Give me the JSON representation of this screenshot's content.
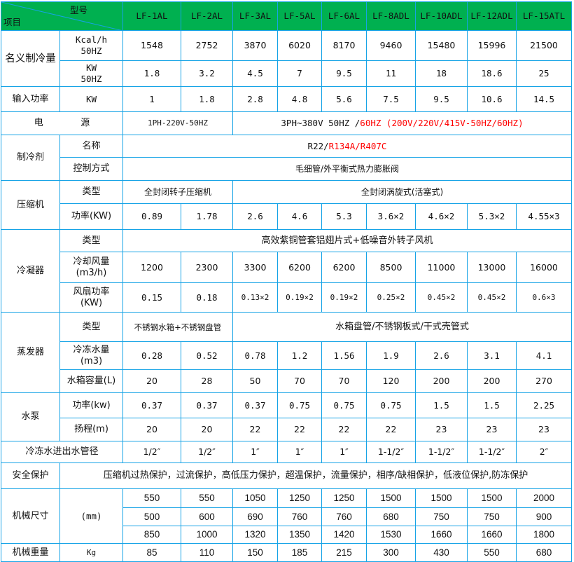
{
  "header": {
    "item_label": "项目",
    "model_label": "型号",
    "models": [
      "LF-1AL",
      "LF-2AL",
      "LF-3AL",
      "LF-5AL",
      "LF-6AL",
      "LF-8ADL",
      "LF-10ADL",
      "LF-12ADL",
      "LF-15ATL"
    ]
  },
  "cooling": {
    "label": "名义制冷量",
    "kcal": {
      "unit1": "Kcal/h",
      "unit2": "50HZ",
      "values": [
        "1548",
        "2752",
        "3870",
        "6020",
        "8170",
        "9460",
        "15480",
        "15996",
        "21500"
      ]
    },
    "kw": {
      "unit1": "KW",
      "unit2": "50HZ",
      "values": [
        "1.8",
        "3.2",
        "4.5",
        "7",
        "9.5",
        "11",
        "18",
        "18.6",
        "25"
      ]
    }
  },
  "input_power": {
    "label": "输入功率",
    "unit": "KW",
    "values": [
      "1",
      "1.8",
      "2.8",
      "4.8",
      "5.6",
      "7.5",
      "9.5",
      "10.6",
      "14.5"
    ]
  },
  "power_supply": {
    "label_a": "电",
    "label_b": "源",
    "single_phase": "1PH-220V-50HZ",
    "three_phase_black": "3PH~380V 50HZ /",
    "three_phase_red": "60HZ (200V/220V/415V-50HZ/60HZ)"
  },
  "refrigerant": {
    "label": "制冷剂",
    "name_label": "名称",
    "name_black": "R22/",
    "name_red": "R134A/R407C",
    "control_label": "控制方式",
    "control_value": "毛细管/外平衡式热力膨胀阀"
  },
  "compressor": {
    "label": "压缩机",
    "type_label": "类型",
    "type_small": "全封闭转子压缩机",
    "type_large": "全封闭涡旋式(活塞式)",
    "power_label": "功率(KW)",
    "power_values": [
      "0.89",
      "1.78",
      "2.6",
      "4.6",
      "5.3",
      "3.6×2",
      "4.6×2",
      "5.3×2",
      "4.55×3"
    ]
  },
  "condenser": {
    "label": "冷凝器",
    "type_label": "类型",
    "type_value": "高效紫铜管套铝翅片式+低噪音外转子风机",
    "airflow_label1": "冷却风量",
    "airflow_label2": "(m3/h)",
    "airflow_values": [
      "1200",
      "2300",
      "3300",
      "6200",
      "6200",
      "8500",
      "11000",
      "13000",
      "16000"
    ],
    "fan_label1": "风扇功率",
    "fan_label2": "(KW)",
    "fan_values": [
      "0.15",
      "0.18",
      "0.13×2",
      "0.19×2",
      "0.19×2",
      "0.25×2",
      "0.45×2",
      "0.45×2",
      "0.6×3"
    ]
  },
  "evaporator": {
    "label": "蒸发器",
    "type_label": "类型",
    "type_small": "不锈钢水箱+不锈钢盘管",
    "type_large": "水箱盘管/不锈钢板式/干式壳管式",
    "chilled_label1": "冷冻水量",
    "chilled_label2": "(m3)",
    "chilled_values": [
      "0.28",
      "0.52",
      "0.78",
      "1.2",
      "1.56",
      "1.9",
      "2.6",
      "3.1",
      "4.1"
    ],
    "tank_label": "水箱容量(L)",
    "tank_values": [
      "20",
      "28",
      "50",
      "70",
      "70",
      "120",
      "200",
      "200",
      "270"
    ]
  },
  "pump": {
    "label": "水泵",
    "power_label": "功率(kw)",
    "power_values": [
      "0.37",
      "0.37",
      "0.37",
      "0.75",
      "0.75",
      "0.75",
      "1.5",
      "1.5",
      "2.25"
    ],
    "head_label": "扬程(m)",
    "head_values": [
      "20",
      "20",
      "22",
      "22",
      "22",
      "22",
      "23",
      "23",
      "23"
    ]
  },
  "pipe": {
    "label": "冷冻水进出水管径",
    "values": [
      "1/2″",
      "1/2″",
      "1″",
      "1″",
      "1″",
      "1-1/2″",
      "1-1/2″",
      "1-1/2″",
      "2″"
    ]
  },
  "safety": {
    "label": "安全保护",
    "value": "压缩机过热保护，过流保护，高低压力保护，超温保护，流量保护，相序/缺相保护，低液位保护,防冻保护"
  },
  "dimensions": {
    "label": "机械尺寸",
    "unit": "(mm)",
    "rows": [
      [
        "550",
        "550",
        "1050",
        "1250",
        "1250",
        "1500",
        "1500",
        "1500",
        "2000"
      ],
      [
        "500",
        "600",
        "690",
        "760",
        "760",
        "680",
        "750",
        "750",
        "900"
      ],
      [
        "850",
        "1000",
        "1320",
        "1350",
        "1420",
        "1530",
        "1660",
        "1660",
        "1800"
      ]
    ]
  },
  "weight": {
    "label": "机械重量",
    "unit": "Kg",
    "values": [
      "85",
      "110",
      "150",
      "185",
      "215",
      "300",
      "430",
      "550",
      "680"
    ]
  },
  "colors": {
    "header_bg": "#00b050",
    "border": "#15a3e6",
    "highlight_text": "#ff0000"
  }
}
